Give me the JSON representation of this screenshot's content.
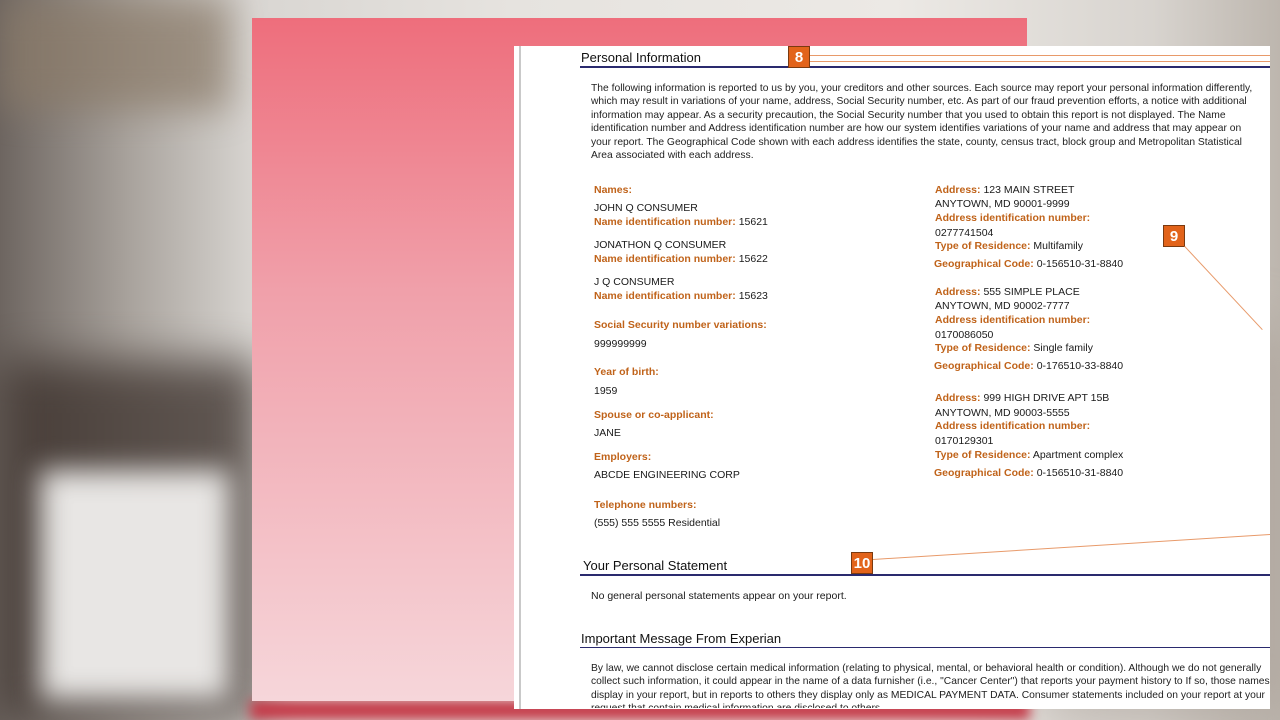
{
  "personal_information": {
    "title": "Personal Information",
    "badge": "8",
    "intro": "The following information is reported to us by you, your creditors and other sources. Each source may report your personal information differently, which may result in variations of your name, address, Social Security number, etc. As part of our fraud prevention efforts, a notice with additional information may appear. As a security precaution, the Social Security number that you used to obtain this report is not displayed.  The Name identification number and Address identification number are how our system identifies variations of your name and address that may appear on your report. The Geographical Code shown with each address identifies the state, county, census tract, block group and Metropolitan Statistical Area associated with each address.",
    "names_label": "Names:",
    "names": [
      {
        "name": "JOHN Q CONSUMER",
        "id_label": "Name identification number:",
        "id": "15621"
      },
      {
        "name": "JONATHON Q CONSUMER",
        "id_label": "Name identification number:",
        "id": "15622"
      },
      {
        "name": "J Q CONSUMER",
        "id_label": "Name identification number:",
        "id": "15623"
      }
    ],
    "ssn_label": "Social Security number variations:",
    "ssn": "999999999",
    "yob_label": "Year of birth:",
    "yob": "1959",
    "spouse_label": "Spouse or co-applicant:",
    "spouse": "JANE",
    "employers_label": "Employers:",
    "employers": "ABCDE ENGINEERING CORP",
    "phone_label": "Telephone numbers:",
    "phone": "(555) 555 5555 Residential",
    "address_badge": "9",
    "addresses": [
      {
        "label": "Address:",
        "line1": "123 MAIN STREET",
        "line2": "ANYTOWN, MD 90001-9999",
        "id_label": "Address identification number:",
        "id": "0277741504",
        "type_label": "Type of Residence:",
        "type": "Multifamily",
        "geo_label": "Geographical Code:",
        "geo": "0-156510-31-8840"
      },
      {
        "label": "Address:",
        "line1": "555 SIMPLE PLACE",
        "line2": "ANYTOWN, MD 90002-7777",
        "id_label": "Address identification number:",
        "id": "0170086050",
        "type_label": "Type of Residence:",
        "type": "Single family",
        "geo_label": "Geographical Code:",
        "geo": "0-176510-33-8840"
      },
      {
        "label": "Address:",
        "line1": "999 HIGH DRIVE APT 15B",
        "line2": "ANYTOWN, MD 90003-5555",
        "id_label": "Address identification number:",
        "id": "0170129301",
        "type_label": "Type of Residence:",
        "type": "Apartment complex",
        "geo_label": "Geographical Code:",
        "geo": "0-156510-31-8840"
      }
    ]
  },
  "personal_statement": {
    "title": "Your Personal Statement",
    "badge": "10",
    "text": "No general personal statements appear on your report."
  },
  "important_message": {
    "title": "Important Message From Experian",
    "text": "By law, we cannot disclose certain medical information (relating to physical, mental, or behavioral health or condition). Although we do not generally collect such information, it could appear in the name of a data furnisher (i.e., \"Cancer Center\") that reports your payment history to If so, those names display in your report, but in reports to others they display only as MEDICAL PAYMENT DATA. Consumer statements included on your report at your request that contain medical information are disclosed to others."
  },
  "colors": {
    "label": "#c0631a",
    "badge": "#e2631a",
    "rule": "#2a2a6e",
    "frame": "#ee6e7c"
  }
}
